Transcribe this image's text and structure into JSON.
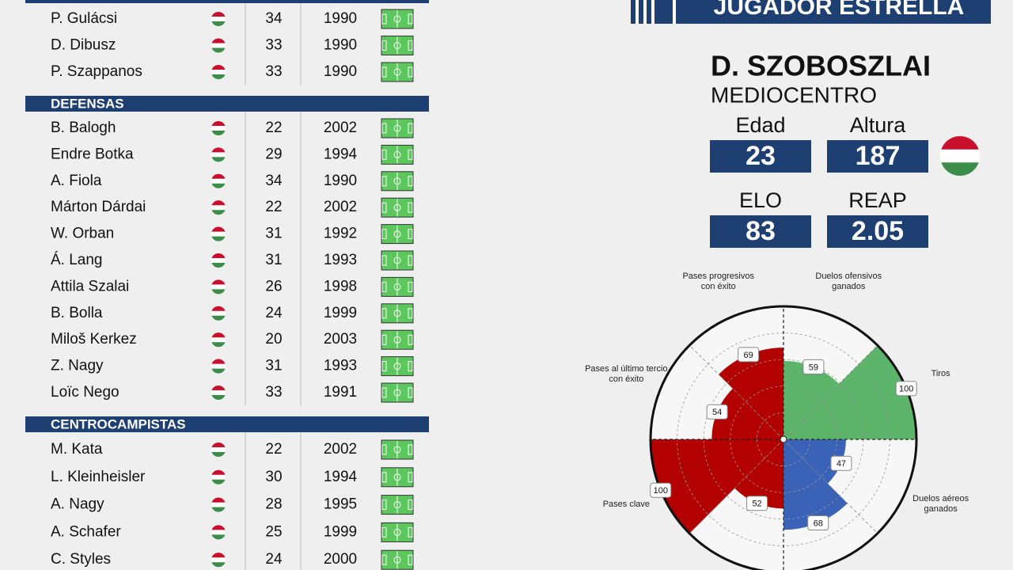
{
  "roster": {
    "sections": [
      {
        "rows": [
          {
            "name": "P. Gulácsi",
            "age": 34,
            "year": 1990
          },
          {
            "name": "D. Dibusz",
            "age": 33,
            "year": 1990
          },
          {
            "name": "P. Szappanos",
            "age": 33,
            "year": 1990
          }
        ]
      },
      {
        "title": "DEFENSAS",
        "rows": [
          {
            "name": "B. Balogh",
            "age": 22,
            "year": 2002
          },
          {
            "name": "Endre Botka",
            "age": 29,
            "year": 1994
          },
          {
            "name": "A. Fiola",
            "age": 34,
            "year": 1990
          },
          {
            "name": "Márton Dárdai",
            "age": 22,
            "year": 2002
          },
          {
            "name": "W. Orban",
            "age": 31,
            "year": 1992
          },
          {
            "name": "Á. Lang",
            "age": 31,
            "year": 1993
          },
          {
            "name": "Attila Szalai",
            "age": 26,
            "year": 1998
          },
          {
            "name": "B. Bolla",
            "age": 24,
            "year": 1999
          },
          {
            "name": "Miloš Kerkez",
            "age": 20,
            "year": 2003
          },
          {
            "name": "Z. Nagy",
            "age": 31,
            "year": 1993
          },
          {
            "name": "Loïc Nego",
            "age": 33,
            "year": 1991
          }
        ]
      },
      {
        "title": "CENTROCAMPISTAS",
        "rows": [
          {
            "name": "M. Kata",
            "age": 22,
            "year": 2002
          },
          {
            "name": "L. Kleinheisler",
            "age": 30,
            "year": 1994
          },
          {
            "name": "A. Nagy",
            "age": 28,
            "year": 1995
          },
          {
            "name": "A. Schafer",
            "age": 25,
            "year": 1999
          },
          {
            "name": "C. Styles",
            "age": 24,
            "year": 2000
          }
        ]
      }
    ]
  },
  "header": {
    "title": "JUGADOR ESTRELLA"
  },
  "player": {
    "name": "D. SZOBOSZLAI",
    "position": "MEDIOCENTRO",
    "stats": [
      {
        "label": "Edad",
        "value": 23
      },
      {
        "label": "Altura",
        "value": 187
      },
      {
        "label": "ELO",
        "value": 83
      },
      {
        "label": "REAP",
        "value": 2.05
      }
    ]
  },
  "chart_data": {
    "type": "polar",
    "categories": [
      "Duelos ofensivos ganados",
      "Tiros",
      "Duelos aéreos ganados",
      null,
      null,
      "Pases clave",
      "Pases al último tercio con éxito",
      "Pases progresivos con éxito"
    ],
    "values": [
      59,
      100,
      47,
      68,
      52,
      100,
      54,
      69
    ],
    "colors": [
      "#5cb46a",
      "#5cb46a",
      "#3a63b8",
      "#3a63b8",
      "#b30000",
      "#b30000",
      "#b30000",
      "#b30000"
    ],
    "rlim": [
      0,
      100
    ],
    "rticks": [
      20,
      40,
      60,
      80
    ]
  }
}
